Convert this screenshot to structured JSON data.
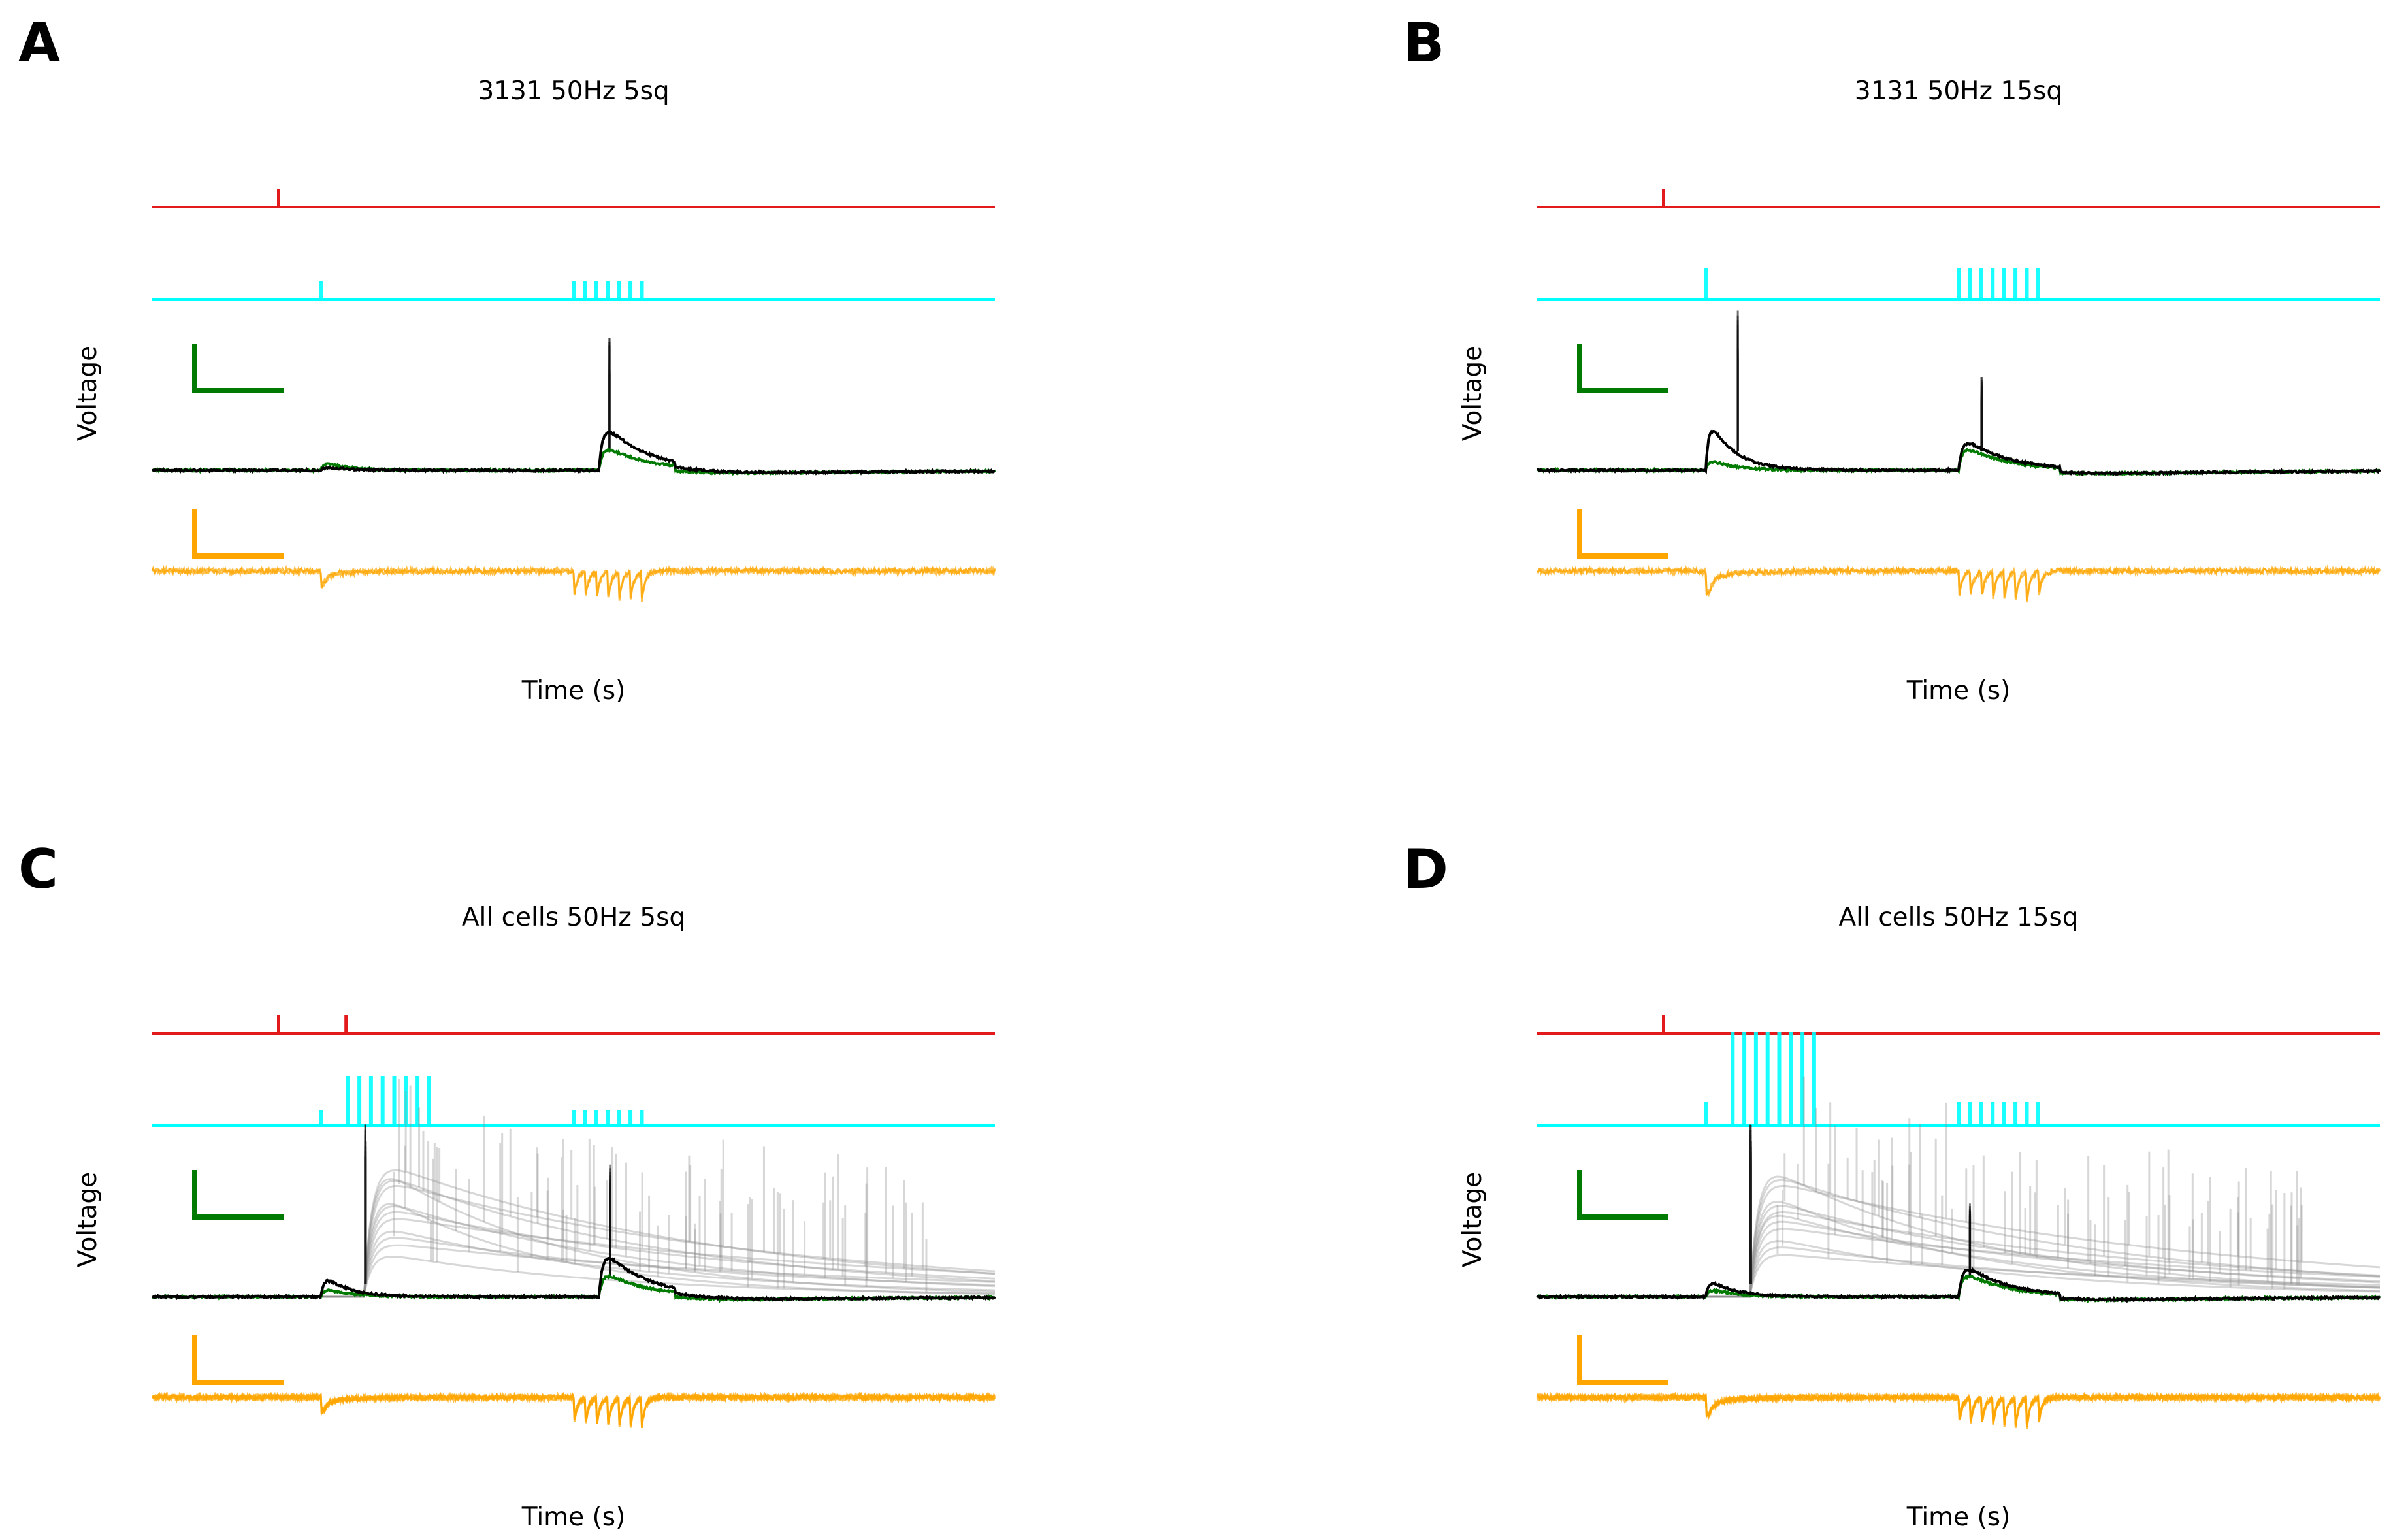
{
  "colors": {
    "stim_marker": "#e31a1c",
    "optical_stim": "#00ffff",
    "voltage_mean": "#000000",
    "voltage_trials": "#8c8c8c",
    "voltage_reference": "#007a00",
    "current": "#ffa500",
    "background": "#ffffff"
  },
  "chart_data": [
    {
      "type": "line",
      "panel": "A",
      "title": "3131 50Hz 5sq",
      "xlabel": "Time (s)",
      "ylabel": "Voltage",
      "grid": false,
      "traces": [
        "stimulus marker",
        "optical stimulus",
        "voltage",
        "current"
      ],
      "marker_x": [
        0.15
      ],
      "optical_pulses": {
        "early": {
          "start": 0.2,
          "count": 1,
          "interval": 0.02,
          "amp": 0.35
        },
        "late": {
          "start": 0.5,
          "count": 7,
          "interval": 0.0135,
          "amp": 0.35
        }
      },
      "voltage": {
        "early_bump": 0.05,
        "burst_onset": 0.53,
        "burst_amp": 0.85,
        "mode": "single"
      },
      "current": {
        "early_dip": 0.45,
        "late_dips": 7,
        "late_amp": 0.75,
        "mode": "single"
      }
    },
    {
      "type": "line",
      "panel": "B",
      "title": "3131 50Hz 15sq",
      "xlabel": "Time (s)",
      "ylabel": "Voltage",
      "grid": false,
      "traces": [
        "stimulus marker",
        "optical stimulus",
        "voltage",
        "current"
      ],
      "marker_x": [
        0.15
      ],
      "optical_pulses": {
        "early": {
          "start": 0.2,
          "count": 1,
          "interval": 0.02,
          "amp": 0.6
        },
        "late": {
          "start": 0.5,
          "count": 8,
          "interval": 0.0135,
          "amp": 0.6
        }
      },
      "voltage": {
        "early_bump": 0.75,
        "burst_onset": 0.5,
        "burst_amp": 0.6,
        "mode": "double"
      },
      "current": {
        "early_dip": 0.75,
        "late_dips": 8,
        "late_amp": 0.75,
        "mode": "single"
      }
    },
    {
      "type": "line",
      "panel": "C",
      "title": "All cells 50Hz 5sq",
      "xlabel": "Time (s)",
      "ylabel": "Voltage",
      "grid": false,
      "traces": [
        "stimulus marker",
        "optical stimulus",
        "voltage",
        "current"
      ],
      "marker_x": [
        0.15,
        0.23
      ],
      "optical_pulses": {
        "early": {
          "start": 0.2,
          "count": 1,
          "interval": 0.02,
          "amp": 0.3
        },
        "mid": {
          "start": 0.232,
          "count": 8,
          "interval": 0.0138,
          "amp": 0.95
        },
        "late": {
          "start": 0.5,
          "count": 7,
          "interval": 0.0135,
          "amp": 0.3
        }
      },
      "voltage": {
        "early_bump": 0.3,
        "burst_onset": 0.53,
        "burst_amp": 0.85,
        "mode": "population"
      },
      "current": {
        "early_dip": 0.45,
        "late_dips": 7,
        "late_amp": 0.75,
        "mode": "population"
      }
    },
    {
      "type": "line",
      "panel": "D",
      "title": "All cells 50Hz 15sq",
      "xlabel": "Time (s)",
      "ylabel": "Voltage",
      "grid": false,
      "traces": [
        "stimulus marker",
        "optical stimulus",
        "voltage",
        "current"
      ],
      "marker_x": [
        0.15
      ],
      "optical_pulses": {
        "early": {
          "start": 0.2,
          "count": 1,
          "interval": 0.02,
          "amp": 0.45
        },
        "mid": {
          "start": 0.232,
          "count": 8,
          "interval": 0.0138,
          "amp": 1.8
        },
        "late": {
          "start": 0.5,
          "count": 8,
          "interval": 0.0135,
          "amp": 0.45
        }
      },
      "voltage": {
        "early_bump": 0.25,
        "burst_onset": 0.5,
        "burst_amp": 0.6,
        "mode": "population"
      },
      "current": {
        "early_dip": 0.6,
        "late_dips": 8,
        "late_amp": 0.75,
        "mode": "population"
      }
    }
  ]
}
